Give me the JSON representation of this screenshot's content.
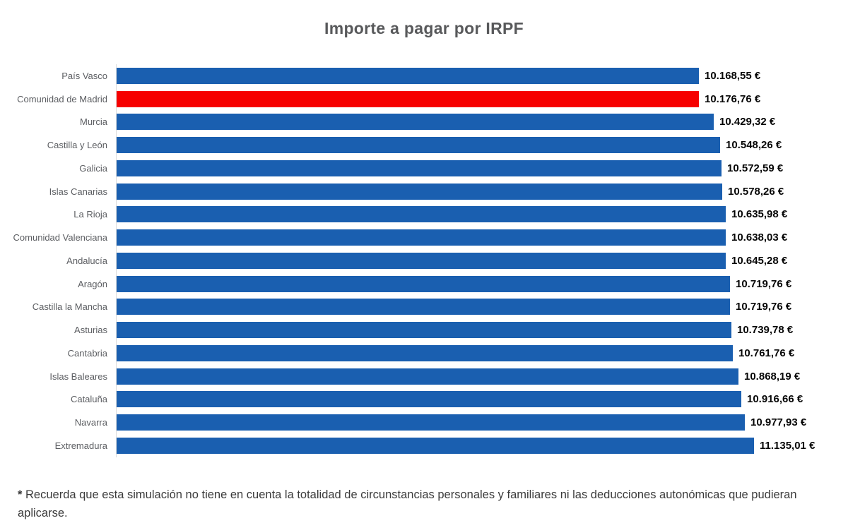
{
  "title": "Importe a pagar por IRPF",
  "footnote": {
    "marker": "*",
    "text": " Recuerda que esta simulación no tiene en cuenta la totalidad de circunstancias personales y familiares ni las deducciones autonómicas que pudieran aplicarse."
  },
  "chart_data": {
    "type": "bar",
    "orientation": "horizontal",
    "title": "Importe a pagar por IRPF",
    "categories": [
      "País Vasco",
      "Comunidad de Madrid",
      "Murcia",
      "Castilla y León",
      "Galicia",
      "Islas Canarias",
      "La Rioja",
      "Comunidad Valenciana",
      "Andalucía",
      "Aragón",
      "Castilla la Mancha",
      "Asturias",
      "Cantabria",
      "Islas Baleares",
      "Cataluña",
      "Navarra",
      "Extremadura"
    ],
    "values": [
      10168.55,
      10176.76,
      10429.32,
      10548.26,
      10572.59,
      10578.26,
      10635.98,
      10638.03,
      10645.28,
      10719.76,
      10719.76,
      10739.78,
      10761.76,
      10868.19,
      10916.66,
      10977.93,
      11135.01
    ],
    "value_labels": [
      "10.168,55 €",
      "10.176,76 €",
      "10.429,32 €",
      "10.548,26 €",
      "10.572,59 €",
      "10.578,26 €",
      "10.635,98 €",
      "10.638,03 €",
      "10.645,28 €",
      "10.719,76 €",
      "10.719,76 €",
      "10.739,78 €",
      "10.761,76 €",
      "10.868,19 €",
      "10.916,66 €",
      "10.977,93 €",
      "11.135,01 €"
    ],
    "unit": "€",
    "xlim": [
      0,
      12600
    ],
    "grid": false,
    "legend": false,
    "bar_color": "#1a5fb0",
    "highlight_color": "#f60000",
    "highlight_index": 1
  }
}
